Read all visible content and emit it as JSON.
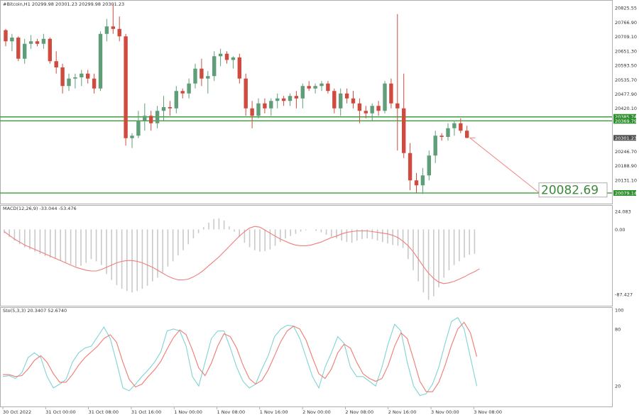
{
  "header": {
    "symbol_line": "#Bitcoin,H1  20299.98 20301.23 20299.98 20301.23",
    "macd_line": "MACD(12,26,9) -33.044 -53.476",
    "stoch_line": "Sto(5,3,3) 20.3407 52.6740"
  },
  "colors": {
    "bull": "#5f9e78",
    "bear": "#cf4b3f",
    "level_line": "#3aa03a",
    "projection": "#f08a8a",
    "macd_hist": "#c9c9c9",
    "macd_signal": "#ef7d7d",
    "stoch_k": "#7fd4d4",
    "stoch_d": "#f07a72",
    "current_price_box": "#505050",
    "level_box": "#2f8f2f"
  },
  "chart_data": [
    {
      "type": "candlestick",
      "pane": "price",
      "title": "#Bitcoin,H1",
      "ylim": [
        20045,
        20845
      ],
      "y_ticks": [
        "20825.55",
        "20766.90",
        "20709.10",
        "20651.30",
        "20593.50",
        "20535.70",
        "20477.90",
        "20420.10",
        "20246.70",
        "20188.90",
        "20131.10"
      ],
      "levels": [
        {
          "label": "20385.74",
          "value": 20385.74
        },
        {
          "label": "20369.79",
          "value": 20369.79
        },
        {
          "label": "20079.14",
          "value": 20079.14
        }
      ],
      "current_price": {
        "label": "20301.23",
        "value": 20301.23
      },
      "target": {
        "label": "20082.69",
        "value": 20082.69
      },
      "candles": [
        [
          20735,
          20740,
          20670,
          20690
        ],
        [
          20690,
          20720,
          20650,
          20705
        ],
        [
          20705,
          20710,
          20610,
          20620
        ],
        [
          20620,
          20700,
          20600,
          20680
        ],
        [
          20680,
          20715,
          20660,
          20690
        ],
        [
          20690,
          20700,
          20670,
          20680
        ],
        [
          20680,
          20720,
          20660,
          20700
        ],
        [
          20700,
          20705,
          20600,
          20610
        ],
        [
          20610,
          20650,
          20560,
          20585
        ],
        [
          20585,
          20600,
          20480,
          20510
        ],
        [
          20510,
          20560,
          20490,
          20540
        ],
        [
          20540,
          20560,
          20500,
          20545
        ],
        [
          20545,
          20575,
          20510,
          20560
        ],
        [
          20560,
          20575,
          20520,
          20540
        ],
        [
          20540,
          20560,
          20480,
          20500
        ],
        [
          20500,
          20730,
          20490,
          20720
        ],
        [
          20720,
          20780,
          20690,
          20750
        ],
        [
          20750,
          20840,
          20720,
          20740
        ],
        [
          20740,
          20790,
          20690,
          20710
        ],
        [
          20710,
          20720,
          20270,
          20300
        ],
        [
          20300,
          20320,
          20260,
          20310
        ],
        [
          20310,
          20410,
          20300,
          20370
        ],
        [
          20370,
          20440,
          20330,
          20390
        ],
        [
          20390,
          20410,
          20330,
          20360
        ],
        [
          20360,
          20430,
          20340,
          20410
        ],
        [
          20410,
          20470,
          20370,
          20425
        ],
        [
          20425,
          20450,
          20390,
          20420
        ],
        [
          20420,
          20510,
          20400,
          20490
        ],
        [
          20490,
          20500,
          20460,
          20480
        ],
        [
          20480,
          20540,
          20460,
          20520
        ],
        [
          20520,
          20600,
          20500,
          20580
        ],
        [
          20580,
          20620,
          20510,
          20540
        ],
        [
          20540,
          20570,
          20480,
          20550
        ],
        [
          20550,
          20650,
          20530,
          20630
        ],
        [
          20630,
          20660,
          20590,
          20640
        ],
        [
          20640,
          20650,
          20600,
          20615
        ],
        [
          20615,
          20630,
          20580,
          20625
        ],
        [
          20625,
          20640,
          20520,
          20540
        ],
        [
          20540,
          20560,
          20390,
          20420
        ],
        [
          20420,
          20450,
          20340,
          20390
        ],
        [
          20390,
          20460,
          20380,
          20440
        ],
        [
          20440,
          20460,
          20400,
          20420
        ],
        [
          20420,
          20460,
          20390,
          20450
        ],
        [
          20450,
          20480,
          20420,
          20460
        ],
        [
          20460,
          20470,
          20430,
          20450
        ],
        [
          20450,
          20480,
          20430,
          20470
        ],
        [
          20470,
          20490,
          20420,
          20460
        ],
        [
          20460,
          20520,
          20420,
          20510
        ],
        [
          20510,
          20530,
          20490,
          20500
        ],
        [
          20500,
          20520,
          20480,
          20510
        ],
        [
          20510,
          20530,
          20490,
          20520
        ],
        [
          20520,
          20530,
          20480,
          20490
        ],
        [
          20490,
          20500,
          20400,
          20420
        ],
        [
          20420,
          20500,
          20390,
          20480
        ],
        [
          20480,
          20500,
          20440,
          20460
        ],
        [
          20460,
          20490,
          20420,
          20440
        ],
        [
          20440,
          20460,
          20360,
          20410
        ],
        [
          20410,
          20430,
          20380,
          20400
        ],
        [
          20400,
          20440,
          20370,
          20430
        ],
        [
          20430,
          20450,
          20390,
          20410
        ],
        [
          20410,
          20530,
          20400,
          20520
        ],
        [
          20520,
          20540,
          20420,
          20440
        ],
        [
          20440,
          20800,
          20250,
          20420
        ],
        [
          20420,
          20560,
          20220,
          20240
        ],
        [
          20240,
          20280,
          20090,
          20130
        ],
        [
          20130,
          20160,
          20080,
          20110
        ],
        [
          20110,
          20180,
          20075,
          20150
        ],
        [
          20150,
          20250,
          20130,
          20230
        ],
        [
          20230,
          20330,
          20200,
          20310
        ],
        [
          20310,
          20320,
          20290,
          20305
        ],
        [
          20305,
          20360,
          20290,
          20340
        ],
        [
          20340,
          20370,
          20310,
          20360
        ],
        [
          20360,
          20380,
          20320,
          20330
        ],
        [
          20330,
          20350,
          20300,
          20301
        ]
      ]
    },
    {
      "type": "bar+line",
      "pane": "macd",
      "title": "MACD(12,26,9) -33.044 -53.476",
      "ylim": [
        -100,
        30
      ],
      "y_ticks": [
        "24.083",
        "0.00",
        "-87.427"
      ],
      "histogram": [
        -5,
        -10,
        -15,
        -20,
        -24,
        -27,
        -30,
        -33,
        -36,
        -38,
        -40,
        -42,
        -45,
        -47,
        -50,
        -49,
        -45,
        -40,
        -43,
        -48,
        -60,
        -68,
        -75,
        -80,
        -83,
        -85,
        -83,
        -80,
        -76,
        -70,
        -65,
        -58,
        -50,
        -43,
        -35,
        -28,
        -20,
        -12,
        -5,
        3,
        9,
        14,
        15,
        12,
        4,
        -3,
        -10,
        -18,
        -24,
        -28,
        -30,
        -29,
        -27,
        -22,
        -17,
        -12,
        -9,
        -6,
        -3,
        -1,
        0,
        -2,
        -4,
        -7,
        -10,
        -12,
        -15,
        -17,
        -18,
        -15,
        -13,
        -12,
        -13,
        -15,
        -17,
        -19,
        -21,
        -22,
        -25,
        -40,
        -55,
        -70,
        -85,
        -95,
        -90,
        -78,
        -65,
        -55,
        -48,
        -43,
        -38,
        -34,
        -33
      ],
      "signal": [
        -3,
        -8,
        -13,
        -17,
        -21,
        -24,
        -27,
        -30,
        -33,
        -36,
        -39,
        -42,
        -45,
        -48,
        -51,
        -53,
        -55,
        -56,
        -56,
        -54,
        -51,
        -48,
        -45,
        -43,
        -42,
        -42,
        -43,
        -45,
        -48,
        -51,
        -55,
        -59,
        -63,
        -66,
        -68,
        -68,
        -67,
        -64,
        -60,
        -55,
        -49,
        -43,
        -37,
        -30,
        -23,
        -16,
        -9,
        -3,
        2,
        4,
        3,
        -1,
        -5,
        -9,
        -13,
        -16,
        -19,
        -21,
        -22,
        -22,
        -21,
        -19,
        -17,
        -14,
        -11,
        -9,
        -6,
        -4,
        -3,
        -2,
        -2,
        -2,
        -3,
        -4,
        -5,
        -6,
        -8,
        -11,
        -16,
        -22,
        -30,
        -40,
        -50,
        -59,
        -66,
        -71,
        -73,
        -72,
        -70,
        -67,
        -64,
        -60,
        -57,
        -53
      ]
    },
    {
      "type": "line",
      "pane": "stochastic",
      "title": "Sto(5,3,3) 20.3407 52.6740",
      "ylim": [
        0,
        100
      ],
      "y_ticks": [
        "100",
        "80",
        "20"
      ],
      "k": [
        30,
        31,
        28,
        34,
        50,
        55,
        50,
        30,
        18,
        22,
        27,
        45,
        55,
        60,
        62,
        72,
        82,
        70,
        45,
        18,
        15,
        22,
        30,
        37,
        45,
        56,
        78,
        80,
        78,
        62,
        30,
        20,
        45,
        70,
        78,
        78,
        60,
        40,
        25,
        18,
        22,
        38,
        52,
        72,
        80,
        84,
        83,
        70,
        50,
        30,
        18,
        40,
        55,
        72,
        65,
        40,
        30,
        30,
        25,
        20,
        40,
        65,
        85,
        78,
        45,
        20,
        10,
        12,
        22,
        40,
        65,
        88,
        92,
        80,
        50,
        20
      ],
      "d": [
        32,
        32,
        30,
        31,
        38,
        47,
        52,
        45,
        33,
        24,
        24,
        32,
        42,
        50,
        56,
        62,
        70,
        74,
        66,
        45,
        27,
        19,
        22,
        30,
        37,
        46,
        59,
        71,
        79,
        74,
        58,
        39,
        31,
        44,
        62,
        75,
        72,
        60,
        42,
        28,
        22,
        26,
        37,
        52,
        67,
        78,
        83,
        80,
        68,
        50,
        33,
        28,
        38,
        55,
        64,
        60,
        45,
        33,
        28,
        25,
        28,
        42,
        62,
        76,
        70,
        48,
        25,
        14,
        14,
        24,
        42,
        63,
        80,
        87,
        76,
        51
      ]
    }
  ],
  "x_axis": {
    "tick_labels": [
      "30 Oct 2022",
      "31 Oct 00:00",
      "31 Oct 08:00",
      "31 Oct 16:00",
      "1 Nov 00:00",
      "1 Nov 08:00",
      "1 Nov 16:00",
      "2 Nov 00:00",
      "2 Nov 08:00",
      "2 Nov 16:00",
      "3 Nov 00:00",
      "3 Nov 08:00"
    ]
  }
}
